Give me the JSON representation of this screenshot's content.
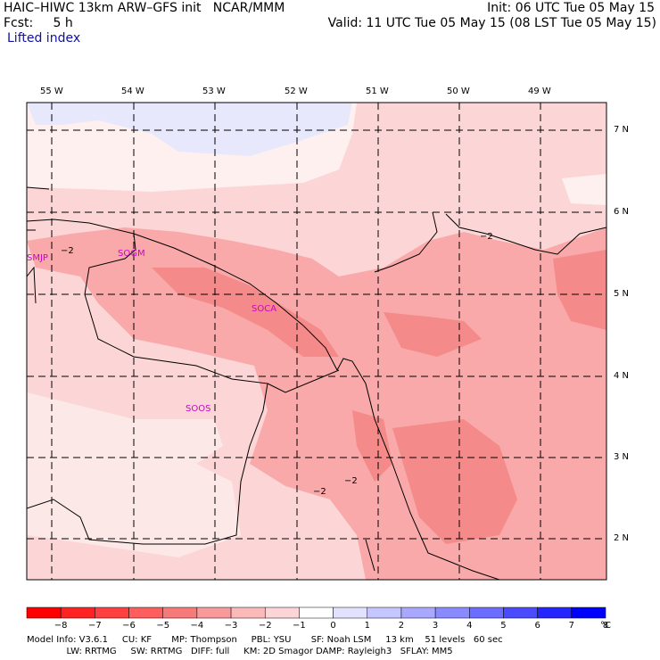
{
  "header": {
    "model_line": "HAIC–HIWC 13km ARW–GFS init   NCAR/MMM",
    "fcst_line": "Fcst:     5 h",
    "field_name": "Lifted index",
    "init_line": "Init: 06 UTC Tue 05 May 15",
    "valid_line": "Valid: 11 UTC Tue 05 May 15 (08 LST Tue 05 May 15)"
  },
  "map": {
    "longitude_labels": [
      "55 W",
      "54 W",
      "53 W",
      "52 W",
      "51 W",
      "50 W",
      "49 W"
    ],
    "latitude_labels": [
      "7 N",
      "6 N",
      "5 N",
      "4 N",
      "3 N",
      "2 N"
    ],
    "stations": [
      "SMJP",
      "SOGM",
      "SOCA",
      "SOOS"
    ],
    "contour_labels": [
      "−2",
      "−2",
      "−2",
      "−2"
    ]
  },
  "colorbar": {
    "labels": [
      "−8",
      "−7",
      "−6",
      "−5",
      "−4",
      "−3",
      "−2",
      "−1",
      "0",
      "1",
      "2",
      "3",
      "4",
      "5",
      "6",
      "7",
      "8"
    ],
    "unit": "°C",
    "colors": [
      "#ff0000",
      "#ff2222",
      "#ff4040",
      "#ff5e5e",
      "#f77a7a",
      "#f99a9a",
      "#fbb9b9",
      "#fcd6d6",
      "#ffffff",
      "#e2e2ff",
      "#c6c6ff",
      "#a8a8ff",
      "#8a8aff",
      "#6c6cff",
      "#4a4aff",
      "#2424ff",
      "#0000ff"
    ]
  },
  "footer": {
    "line1": "Model Info: V3.6.1     CU: KF       MP: Thompson     PBL: YSU       SF: Noah LSM     13 km    51 levels   60 sec",
    "line2": "              LW: RRTMG     SW: RRTMG   DIFF: full     KM: 2D Smagor DAMP: Rayleigh3   SFLAY: MM5"
  }
}
